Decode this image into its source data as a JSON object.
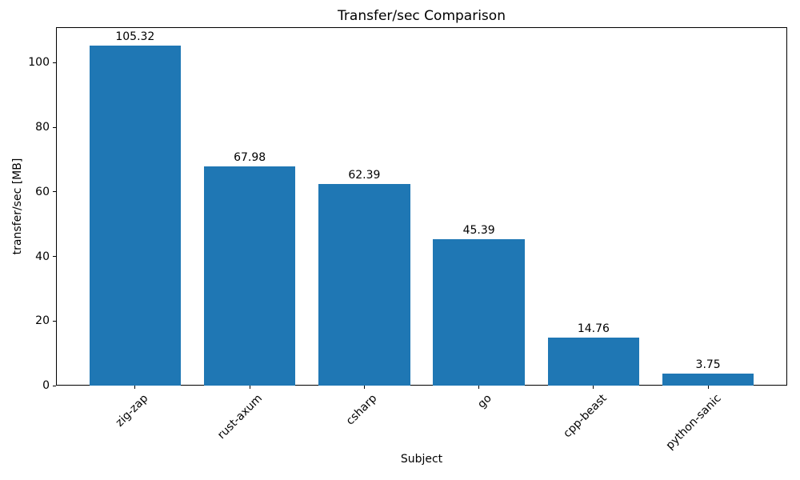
{
  "chart_data": {
    "type": "bar",
    "title": "Transfer/sec Comparison",
    "xlabel": "Subject",
    "ylabel": "transfer/sec [MB]",
    "categories": [
      "zig-zap",
      "rust-axum",
      "csharp",
      "go",
      "cpp-beast",
      "python-sanic"
    ],
    "values": [
      105.32,
      67.98,
      62.39,
      45.39,
      14.76,
      3.75
    ],
    "value_labels": [
      "105.32",
      "67.98",
      "62.39",
      "45.39",
      "14.76",
      "3.75"
    ],
    "ytick_labels": [
      "0",
      "20",
      "40",
      "60",
      "80",
      "100"
    ],
    "yticks": [
      0,
      20,
      40,
      60,
      80,
      100
    ],
    "ylim": [
      0,
      111
    ],
    "bar_color": "#1f77b4",
    "axis_color": "#000000",
    "grid": false,
    "legend_position": "none",
    "bar_width_fraction": 0.8,
    "xtick_rotation_deg": 45
  }
}
